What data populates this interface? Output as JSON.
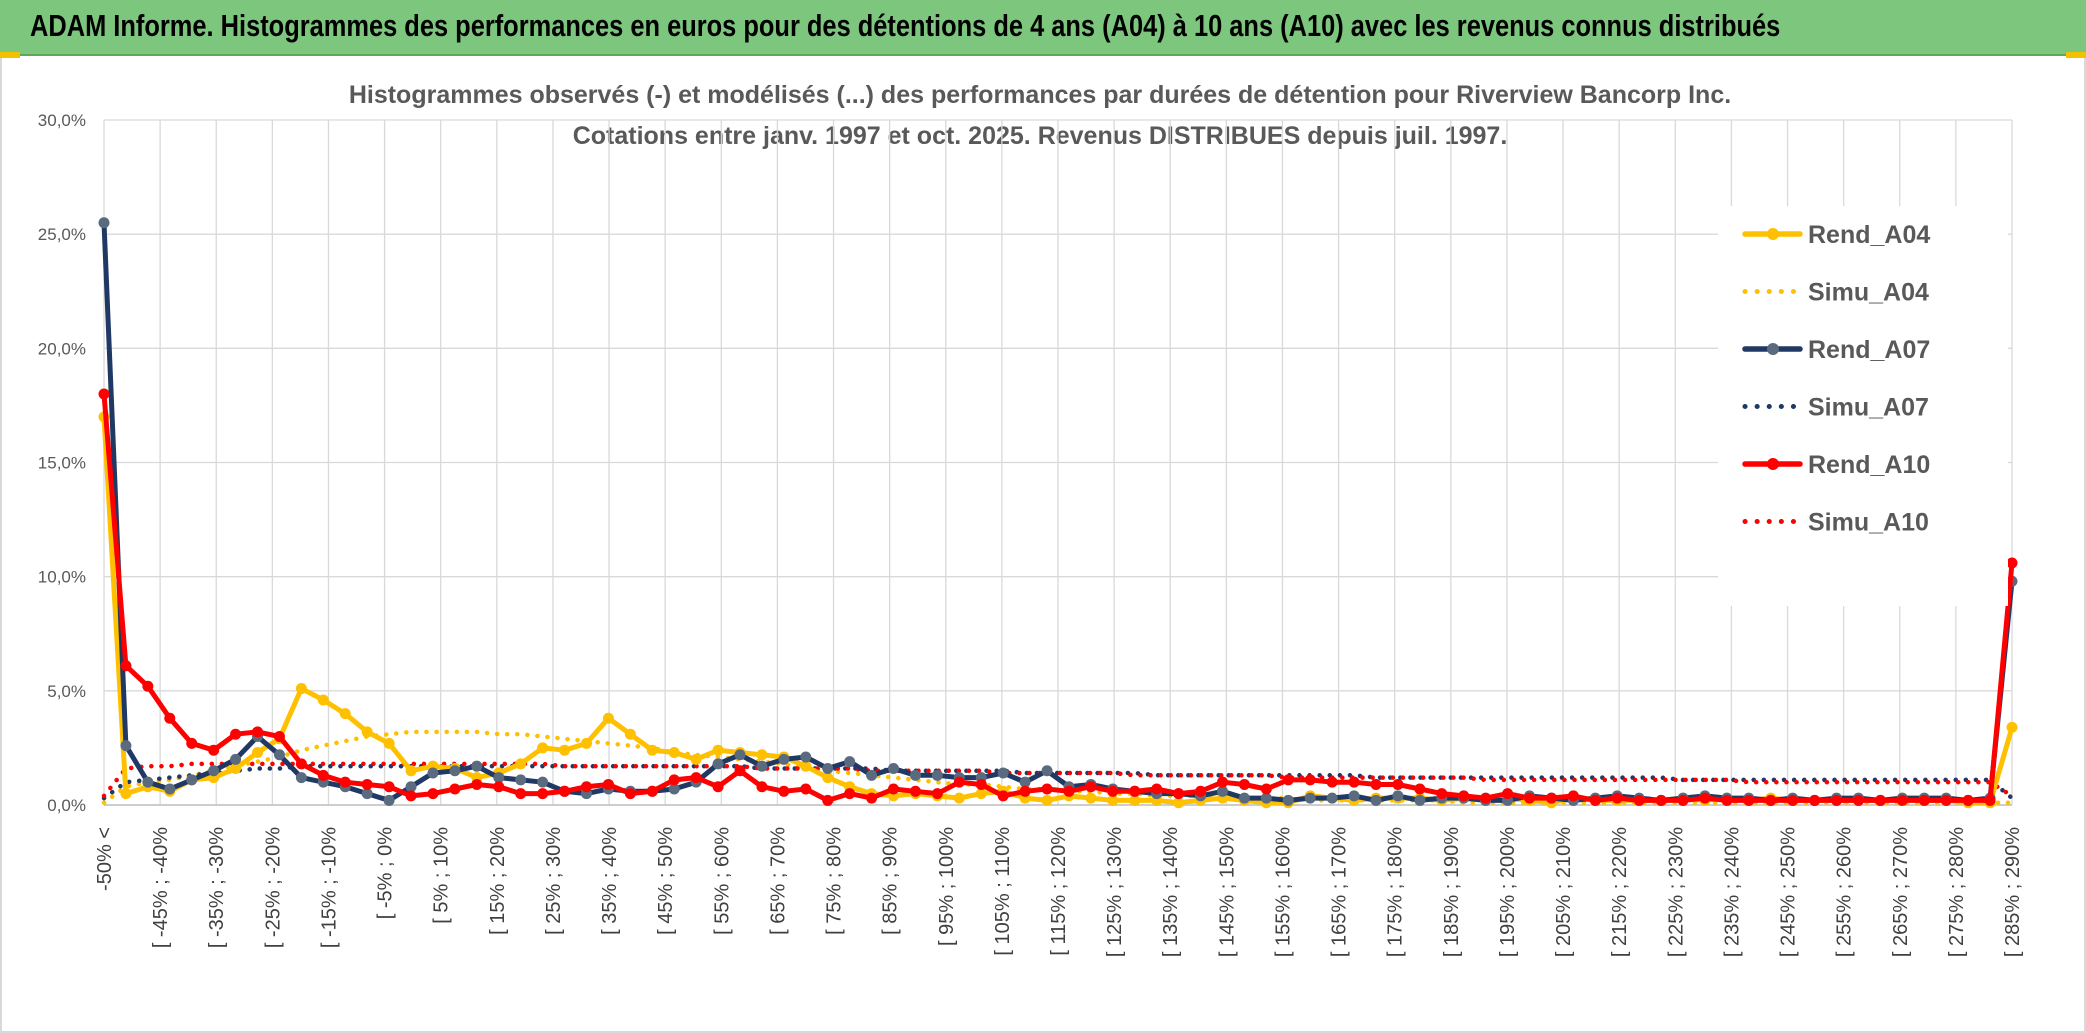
{
  "banner": {
    "title": "ADAM Informe. Histogrammes des performances en euros pour des détentions de 4 ans (A04) à 10 ans (A10) avec les revenus connus distribués"
  },
  "colors": {
    "banner_bg": "#7dc67d",
    "A04": "#ffc000",
    "A07": "#1f3864",
    "A07_marker": "#5a6b80",
    "A10": "#ff0000",
    "grid": "#d9d9d9"
  },
  "chart_data": {
    "type": "line",
    "title_line1": "Histogrammes observés (-) et modélisés (...) des performances par durées de détention pour Riverview Bancorp Inc.",
    "title_line2": "Cotations entre janv. 1997 et oct. 2025. Revenus DISTRIBUES depuis juil. 1997.",
    "ylim": [
      0,
      30
    ],
    "ytick_labels": [
      "0,0%",
      "5,0%",
      "10,0%",
      "15,0%",
      "20,0%",
      "25,0%",
      "30,0%"
    ],
    "grid": true,
    "legend_position": "right",
    "x_labels": [
      "-50% <",
      "[ -45% ; -40%",
      "[ -35% ; -30%",
      "[ -25% ; -20%",
      "[ -15% ; -10%",
      "[ -5% ; 0%",
      "[ 5% ; 10%",
      "[ 15% ; 20%",
      "[ 25% ; 30%",
      "[ 35% ; 40%",
      "[ 45% ; 50%",
      "[ 55% ; 60%",
      "[ 65% ; 70%",
      "[ 75% ; 80%",
      "[ 85% ; 90%",
      "[ 95% ; 100%",
      "[ 105% ; 110%",
      "[ 115% ; 120%",
      "[ 125% ; 130%",
      "[ 135% ; 140%",
      "[ 145% ; 150%",
      "[ 155% ; 160%",
      "[ 165% ; 170%",
      "[ 175% ; 180%",
      "[ 185% ; 190%",
      "[ 195% ; 200%",
      "[ 205% ; 210%",
      "[ 215% ; 220%",
      "[ 225% ; 230%",
      "[ 235% ; 240%",
      "[ 245% ; 250%",
      "[ 255% ; 260%",
      "[ 265% ; 270%",
      "[ 275% ; 280%",
      "[ 285% ; 290%"
    ],
    "series": [
      {
        "name": "Rend_A04",
        "style": "solid",
        "color": "#ffc000",
        "values": [
          17.0,
          0.5,
          0.8,
          0.6,
          1.1,
          1.2,
          1.6,
          2.3,
          2.9,
          5.1,
          4.6,
          4.0,
          3.2,
          2.7,
          1.5,
          1.7,
          1.6,
          1.2,
          1.4,
          1.8,
          2.5,
          2.4,
          2.7,
          3.8,
          3.1,
          2.4,
          2.3,
          2.0,
          2.4,
          2.3,
          2.2,
          2.1,
          1.7,
          1.2,
          0.8,
          0.5,
          0.4,
          0.5,
          0.4,
          0.3,
          0.5,
          0.6,
          0.3,
          0.2,
          0.4,
          0.3,
          0.2,
          0.2,
          0.2,
          0.1,
          0.2,
          0.3,
          0.2,
          0.1,
          0.1,
          0.4,
          0.3,
          0.2,
          0.3,
          0.3,
          0.3,
          0.2,
          0.3,
          0.2,
          0.3,
          0.2,
          0.1,
          0.3,
          0.2,
          0.2,
          0.2,
          0.2,
          0.3,
          0.2,
          0.3,
          0.2,
          0.3,
          0.2,
          0.2,
          0.2,
          0.2,
          0.2,
          0.3,
          0.2,
          0.2,
          0.1,
          0.1,
          3.4
        ]
      },
      {
        "name": "Simu_A04",
        "style": "dotted",
        "color": "#ffc000",
        "values": [
          0.1,
          0.8,
          1.0,
          1.1,
          1.3,
          1.5,
          1.7,
          1.9,
          2.1,
          2.4,
          2.6,
          2.8,
          3.0,
          3.1,
          3.2,
          3.2,
          3.2,
          3.2,
          3.1,
          3.1,
          3.0,
          2.9,
          2.8,
          2.7,
          2.6,
          2.5,
          2.3,
          2.2,
          2.1,
          2.0,
          1.9,
          1.8,
          1.6,
          1.5,
          1.4,
          1.3,
          1.2,
          1.1,
          1.0,
          0.9,
          0.9,
          0.8,
          0.7,
          0.7,
          0.6,
          0.6,
          0.5,
          0.5,
          0.4,
          0.4,
          0.4,
          0.3,
          0.3,
          0.3,
          0.3,
          0.2,
          0.2,
          0.2,
          0.2,
          0.2,
          0.2,
          0.2,
          0.1,
          0.1,
          0.1,
          0.1,
          0.1,
          0.1,
          0.1,
          0.1,
          0.1,
          0.1,
          0.1,
          0.1,
          0.1,
          0.1,
          0.1,
          0.1,
          0.1,
          0.1,
          0.1,
          0.1,
          0.1,
          0.1,
          0.1,
          0.1,
          0.1,
          0.1
        ]
      },
      {
        "name": "Rend_A07",
        "style": "solid",
        "color": "#1f3864",
        "values": [
          25.5,
          2.6,
          1.0,
          0.7,
          1.1,
          1.5,
          2.0,
          3.0,
          2.2,
          1.2,
          1.0,
          0.8,
          0.5,
          0.2,
          0.8,
          1.4,
          1.5,
          1.7,
          1.2,
          1.1,
          1.0,
          0.6,
          0.5,
          0.7,
          0.6,
          0.6,
          0.7,
          1.0,
          1.8,
          2.2,
          1.7,
          2.0,
          2.1,
          1.6,
          1.9,
          1.3,
          1.6,
          1.3,
          1.3,
          1.2,
          1.2,
          1.4,
          1.0,
          1.5,
          0.8,
          0.9,
          0.7,
          0.6,
          0.5,
          0.5,
          0.4,
          0.6,
          0.3,
          0.3,
          0.2,
          0.3,
          0.3,
          0.4,
          0.2,
          0.4,
          0.2,
          0.3,
          0.3,
          0.2,
          0.2,
          0.4,
          0.3,
          0.2,
          0.3,
          0.4,
          0.3,
          0.2,
          0.3,
          0.4,
          0.3,
          0.3,
          0.2,
          0.3,
          0.2,
          0.3,
          0.3,
          0.2,
          0.3,
          0.3,
          0.3,
          0.2,
          0.3,
          9.8
        ]
      },
      {
        "name": "Simu_A07",
        "style": "dotted",
        "color": "#1f3864",
        "values": [
          0.3,
          1.0,
          1.1,
          1.2,
          1.3,
          1.4,
          1.5,
          1.6,
          1.6,
          1.7,
          1.7,
          1.7,
          1.7,
          1.7,
          1.7,
          1.7,
          1.7,
          1.7,
          1.7,
          1.7,
          1.7,
          1.7,
          1.7,
          1.7,
          1.7,
          1.7,
          1.7,
          1.7,
          1.7,
          1.7,
          1.6,
          1.6,
          1.6,
          1.6,
          1.6,
          1.6,
          1.5,
          1.5,
          1.5,
          1.5,
          1.5,
          1.5,
          1.4,
          1.4,
          1.4,
          1.4,
          1.4,
          1.4,
          1.3,
          1.3,
          1.3,
          1.3,
          1.3,
          1.3,
          1.3,
          1.3,
          1.3,
          1.3,
          1.2,
          1.2,
          1.2,
          1.2,
          1.2,
          1.2,
          1.2,
          1.2,
          1.2,
          1.2,
          1.2,
          1.2,
          1.2,
          1.2,
          1.1,
          1.1,
          1.1,
          1.1,
          1.1,
          1.1,
          1.1,
          1.1,
          1.1,
          1.1,
          1.1,
          1.1,
          1.1,
          1.1,
          1.1,
          0.3
        ]
      },
      {
        "name": "Rend_A10",
        "style": "solid",
        "color": "#ff0000",
        "values": [
          18.0,
          6.1,
          5.2,
          3.8,
          2.7,
          2.4,
          3.1,
          3.2,
          3.0,
          1.8,
          1.3,
          1.0,
          0.9,
          0.8,
          0.4,
          0.5,
          0.7,
          0.9,
          0.8,
          0.5,
          0.5,
          0.6,
          0.8,
          0.9,
          0.5,
          0.6,
          1.1,
          1.2,
          0.8,
          1.5,
          0.8,
          0.6,
          0.7,
          0.2,
          0.5,
          0.3,
          0.7,
          0.6,
          0.5,
          1.0,
          0.9,
          0.4,
          0.6,
          0.7,
          0.6,
          0.8,
          0.6,
          0.6,
          0.7,
          0.5,
          0.6,
          1.0,
          0.9,
          0.7,
          1.1,
          1.1,
          1.0,
          1.0,
          0.9,
          0.9,
          0.7,
          0.5,
          0.4,
          0.3,
          0.5,
          0.3,
          0.3,
          0.4,
          0.2,
          0.3,
          0.2,
          0.2,
          0.2,
          0.3,
          0.2,
          0.2,
          0.2,
          0.2,
          0.2,
          0.2,
          0.2,
          0.2,
          0.2,
          0.2,
          0.2,
          0.2,
          0.2,
          10.6
        ]
      },
      {
        "name": "Simu_A10",
        "style": "dotted",
        "color": "#ff0000",
        "values": [
          0.4,
          1.6,
          1.7,
          1.7,
          1.8,
          1.8,
          1.8,
          1.8,
          1.8,
          1.8,
          1.8,
          1.8,
          1.8,
          1.8,
          1.8,
          1.8,
          1.8,
          1.8,
          1.8,
          1.8,
          1.8,
          1.7,
          1.7,
          1.7,
          1.7,
          1.7,
          1.7,
          1.7,
          1.7,
          1.7,
          1.6,
          1.6,
          1.6,
          1.6,
          1.6,
          1.5,
          1.5,
          1.5,
          1.5,
          1.5,
          1.5,
          1.4,
          1.4,
          1.4,
          1.4,
          1.4,
          1.4,
          1.3,
          1.3,
          1.3,
          1.3,
          1.3,
          1.3,
          1.3,
          1.2,
          1.2,
          1.2,
          1.2,
          1.2,
          1.2,
          1.2,
          1.2,
          1.2,
          1.1,
          1.1,
          1.1,
          1.1,
          1.1,
          1.1,
          1.1,
          1.1,
          1.1,
          1.1,
          1.1,
          1.1,
          1.0,
          1.0,
          1.0,
          1.0,
          1.0,
          1.0,
          1.0,
          1.0,
          1.0,
          1.0,
          1.0,
          1.0,
          0.4
        ]
      }
    ]
  }
}
